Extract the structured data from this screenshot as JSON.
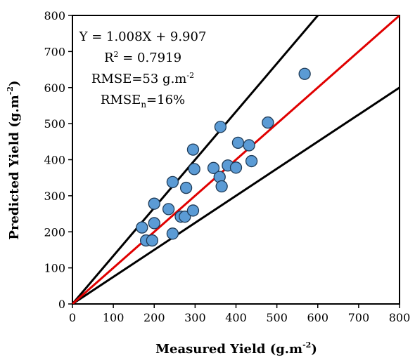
{
  "chart_data": {
    "type": "scatter",
    "xlabel": "Measured Yield (g.m",
    "xlabel_sup": "-2",
    "xlabel_end": ")",
    "ylabel": "Predicted  Yield (g.m",
    "ylabel_sup": "-2",
    "ylabel_end": ")",
    "xlim": [
      0,
      800
    ],
    "ylim": [
      0,
      800
    ],
    "xticks": [
      0,
      100,
      200,
      300,
      400,
      500,
      600,
      700,
      800
    ],
    "yticks": [
      0,
      100,
      200,
      300,
      400,
      500,
      600,
      700,
      800
    ],
    "grid": false,
    "point_color": "#5b9bd5",
    "fit_line_color": "#e00000",
    "bound_line_color": "#000000",
    "annotations": {
      "equation": "Y = 1.008X + 9.907",
      "r2_base": "R",
      "r2_sup": "2",
      "r2_rest": " = 0.7919",
      "rmse_base": "RMSE=53 g.m",
      "rmse_sup": "-2",
      "rmsen_base": "RMSE",
      "rmsen_sub": "n",
      "rmsen_rest": "=16%"
    },
    "fit_line": {
      "slope": 1.008,
      "intercept": 9.907
    },
    "bound_lines": [
      {
        "slope": 1.333
      },
      {
        "slope": 0.75
      }
    ],
    "points": [
      {
        "x": 170,
        "y": 212
      },
      {
        "x": 180,
        "y": 176
      },
      {
        "x": 195,
        "y": 176
      },
      {
        "x": 200,
        "y": 278
      },
      {
        "x": 200,
        "y": 224
      },
      {
        "x": 235,
        "y": 263
      },
      {
        "x": 245,
        "y": 338
      },
      {
        "x": 245,
        "y": 195
      },
      {
        "x": 265,
        "y": 242
      },
      {
        "x": 275,
        "y": 242
      },
      {
        "x": 278,
        "y": 322
      },
      {
        "x": 295,
        "y": 428
      },
      {
        "x": 295,
        "y": 259
      },
      {
        "x": 298,
        "y": 374
      },
      {
        "x": 345,
        "y": 377
      },
      {
        "x": 360,
        "y": 352
      },
      {
        "x": 362,
        "y": 491
      },
      {
        "x": 365,
        "y": 326
      },
      {
        "x": 380,
        "y": 384
      },
      {
        "x": 400,
        "y": 378
      },
      {
        "x": 405,
        "y": 447
      },
      {
        "x": 432,
        "y": 440
      },
      {
        "x": 438,
        "y": 396
      },
      {
        "x": 478,
        "y": 503
      },
      {
        "x": 568,
        "y": 638
      }
    ]
  }
}
